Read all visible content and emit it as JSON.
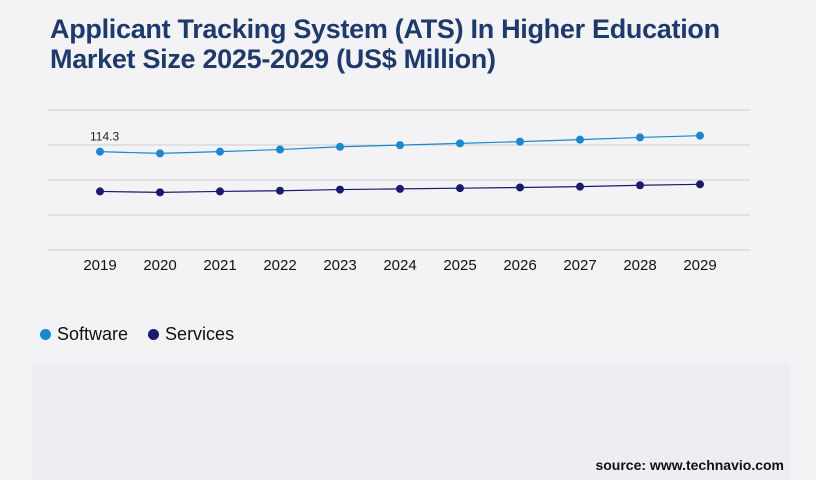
{
  "title": "Applicant Tracking System (ATS) In Higher Education Market Size 2025-2029 (US$ Million)",
  "source": "source: www.technavio.com",
  "colors": {
    "software": "#1a87cf",
    "services": "#1a1a6e",
    "title": "#1e3a6b",
    "grid": "#cfcfd4"
  },
  "chart_data": {
    "type": "line",
    "title": "Applicant Tracking System (ATS) In Higher Education Market Size 2025-2029 (US$ Million)",
    "categories": [
      "2019",
      "2020",
      "2021",
      "2022",
      "2023",
      "2024",
      "2025",
      "2026",
      "2027",
      "2028",
      "2029"
    ],
    "series": [
      {
        "name": "Software",
        "color": "#1a87cf",
        "values": [
          114.3,
          112.8,
          114.3,
          116.1,
          118.5,
          119.9,
          121.4,
          122.9,
          124.6,
          126.5,
          128.0
        ]
      },
      {
        "name": "Services",
        "color": "#1a1a6e",
        "values": [
          80.2,
          79.4,
          80.2,
          80.8,
          81.8,
          82.4,
          83.0,
          83.6,
          84.3,
          85.5,
          86.3
        ]
      }
    ],
    "data_labels": [
      {
        "series": "Software",
        "category": "2019",
        "text": "114.3"
      }
    ],
    "ylim": [
      30,
      150
    ],
    "grid": true,
    "legend": "bottom-left"
  }
}
